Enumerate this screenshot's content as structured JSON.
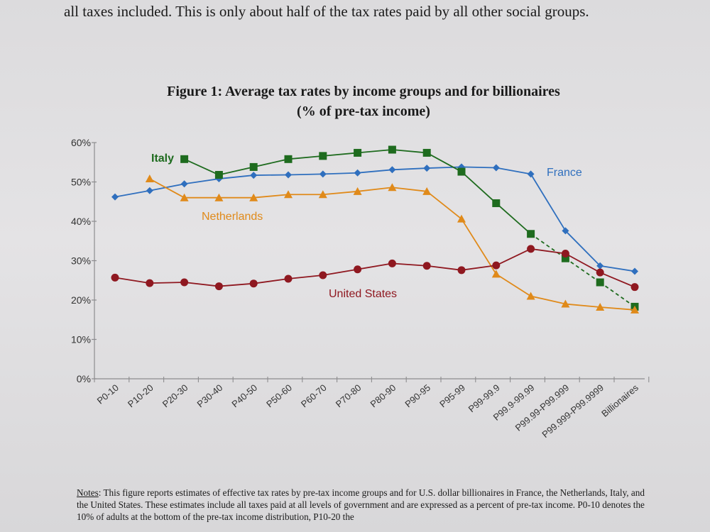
{
  "page": {
    "top_text": "all taxes included. This is only about half of the tax rates paid by all other social groups.",
    "notes_label": "Notes",
    "notes_text": ": This figure reports estimates of effective tax rates by pre-tax income groups and for U.S. dollar billionaires in France, the Netherlands, Italy, and the United States. These estimates include all taxes paid at all levels of government and are expressed as a percent of pre-tax income. P0-10 denotes the 10% of adults at the bottom of the pre-tax income distribution, P10-20 the"
  },
  "chart_data": {
    "type": "line",
    "title": "Figure 1: Average tax rates by income groups and for billionaires",
    "subtitle": "(% of pre-tax income)",
    "categories": [
      "P0-10",
      "P10-20",
      "P20-30",
      "P30-40",
      "P40-50",
      "P50-60",
      "P60-70",
      "P70-80",
      "P80-90",
      "P90-95",
      "P95-99",
      "P99-99.9",
      "P99.9-99.99",
      "P99.99-P99.999",
      "P99.999-P99.9999",
      "Billionaires"
    ],
    "ylim": [
      0,
      60
    ],
    "yticks": [
      "0%",
      "10%",
      "20%",
      "30%",
      "40%",
      "50%",
      "60%"
    ],
    "series": [
      {
        "name": "France",
        "color": "#2f6fbe",
        "marker": "diamond",
        "values": [
          46.2,
          47.8,
          49.5,
          50.8,
          51.7,
          51.8,
          52.0,
          52.3,
          53.1,
          53.5,
          53.8,
          53.6,
          52.0,
          37.6,
          28.7,
          27.3
        ],
        "dashed_from": null
      },
      {
        "name": "Italy",
        "color": "#1e6b1e",
        "marker": "square",
        "values": [
          null,
          null,
          55.8,
          51.8,
          53.8,
          55.8,
          56.6,
          57.4,
          58.2,
          57.4,
          52.6,
          44.6,
          36.8,
          30.6,
          24.5,
          18.3
        ],
        "dashed_from": 12
      },
      {
        "name": "Netherlands",
        "color": "#e08a1a",
        "marker": "triangle",
        "values": [
          null,
          50.8,
          46.0,
          46.0,
          46.0,
          46.8,
          46.8,
          47.6,
          48.6,
          47.6,
          40.6,
          26.6,
          21.0,
          19.0,
          18.2,
          17.5
        ],
        "dashed_from": null
      },
      {
        "name": "United States",
        "color": "#8f1820",
        "marker": "circle",
        "values": [
          25.7,
          24.3,
          24.5,
          23.5,
          24.2,
          25.4,
          26.3,
          27.8,
          29.3,
          28.7,
          27.6,
          28.8,
          33.0,
          31.8,
          27.0,
          23.3
        ],
        "dashed_from": null
      }
    ]
  }
}
